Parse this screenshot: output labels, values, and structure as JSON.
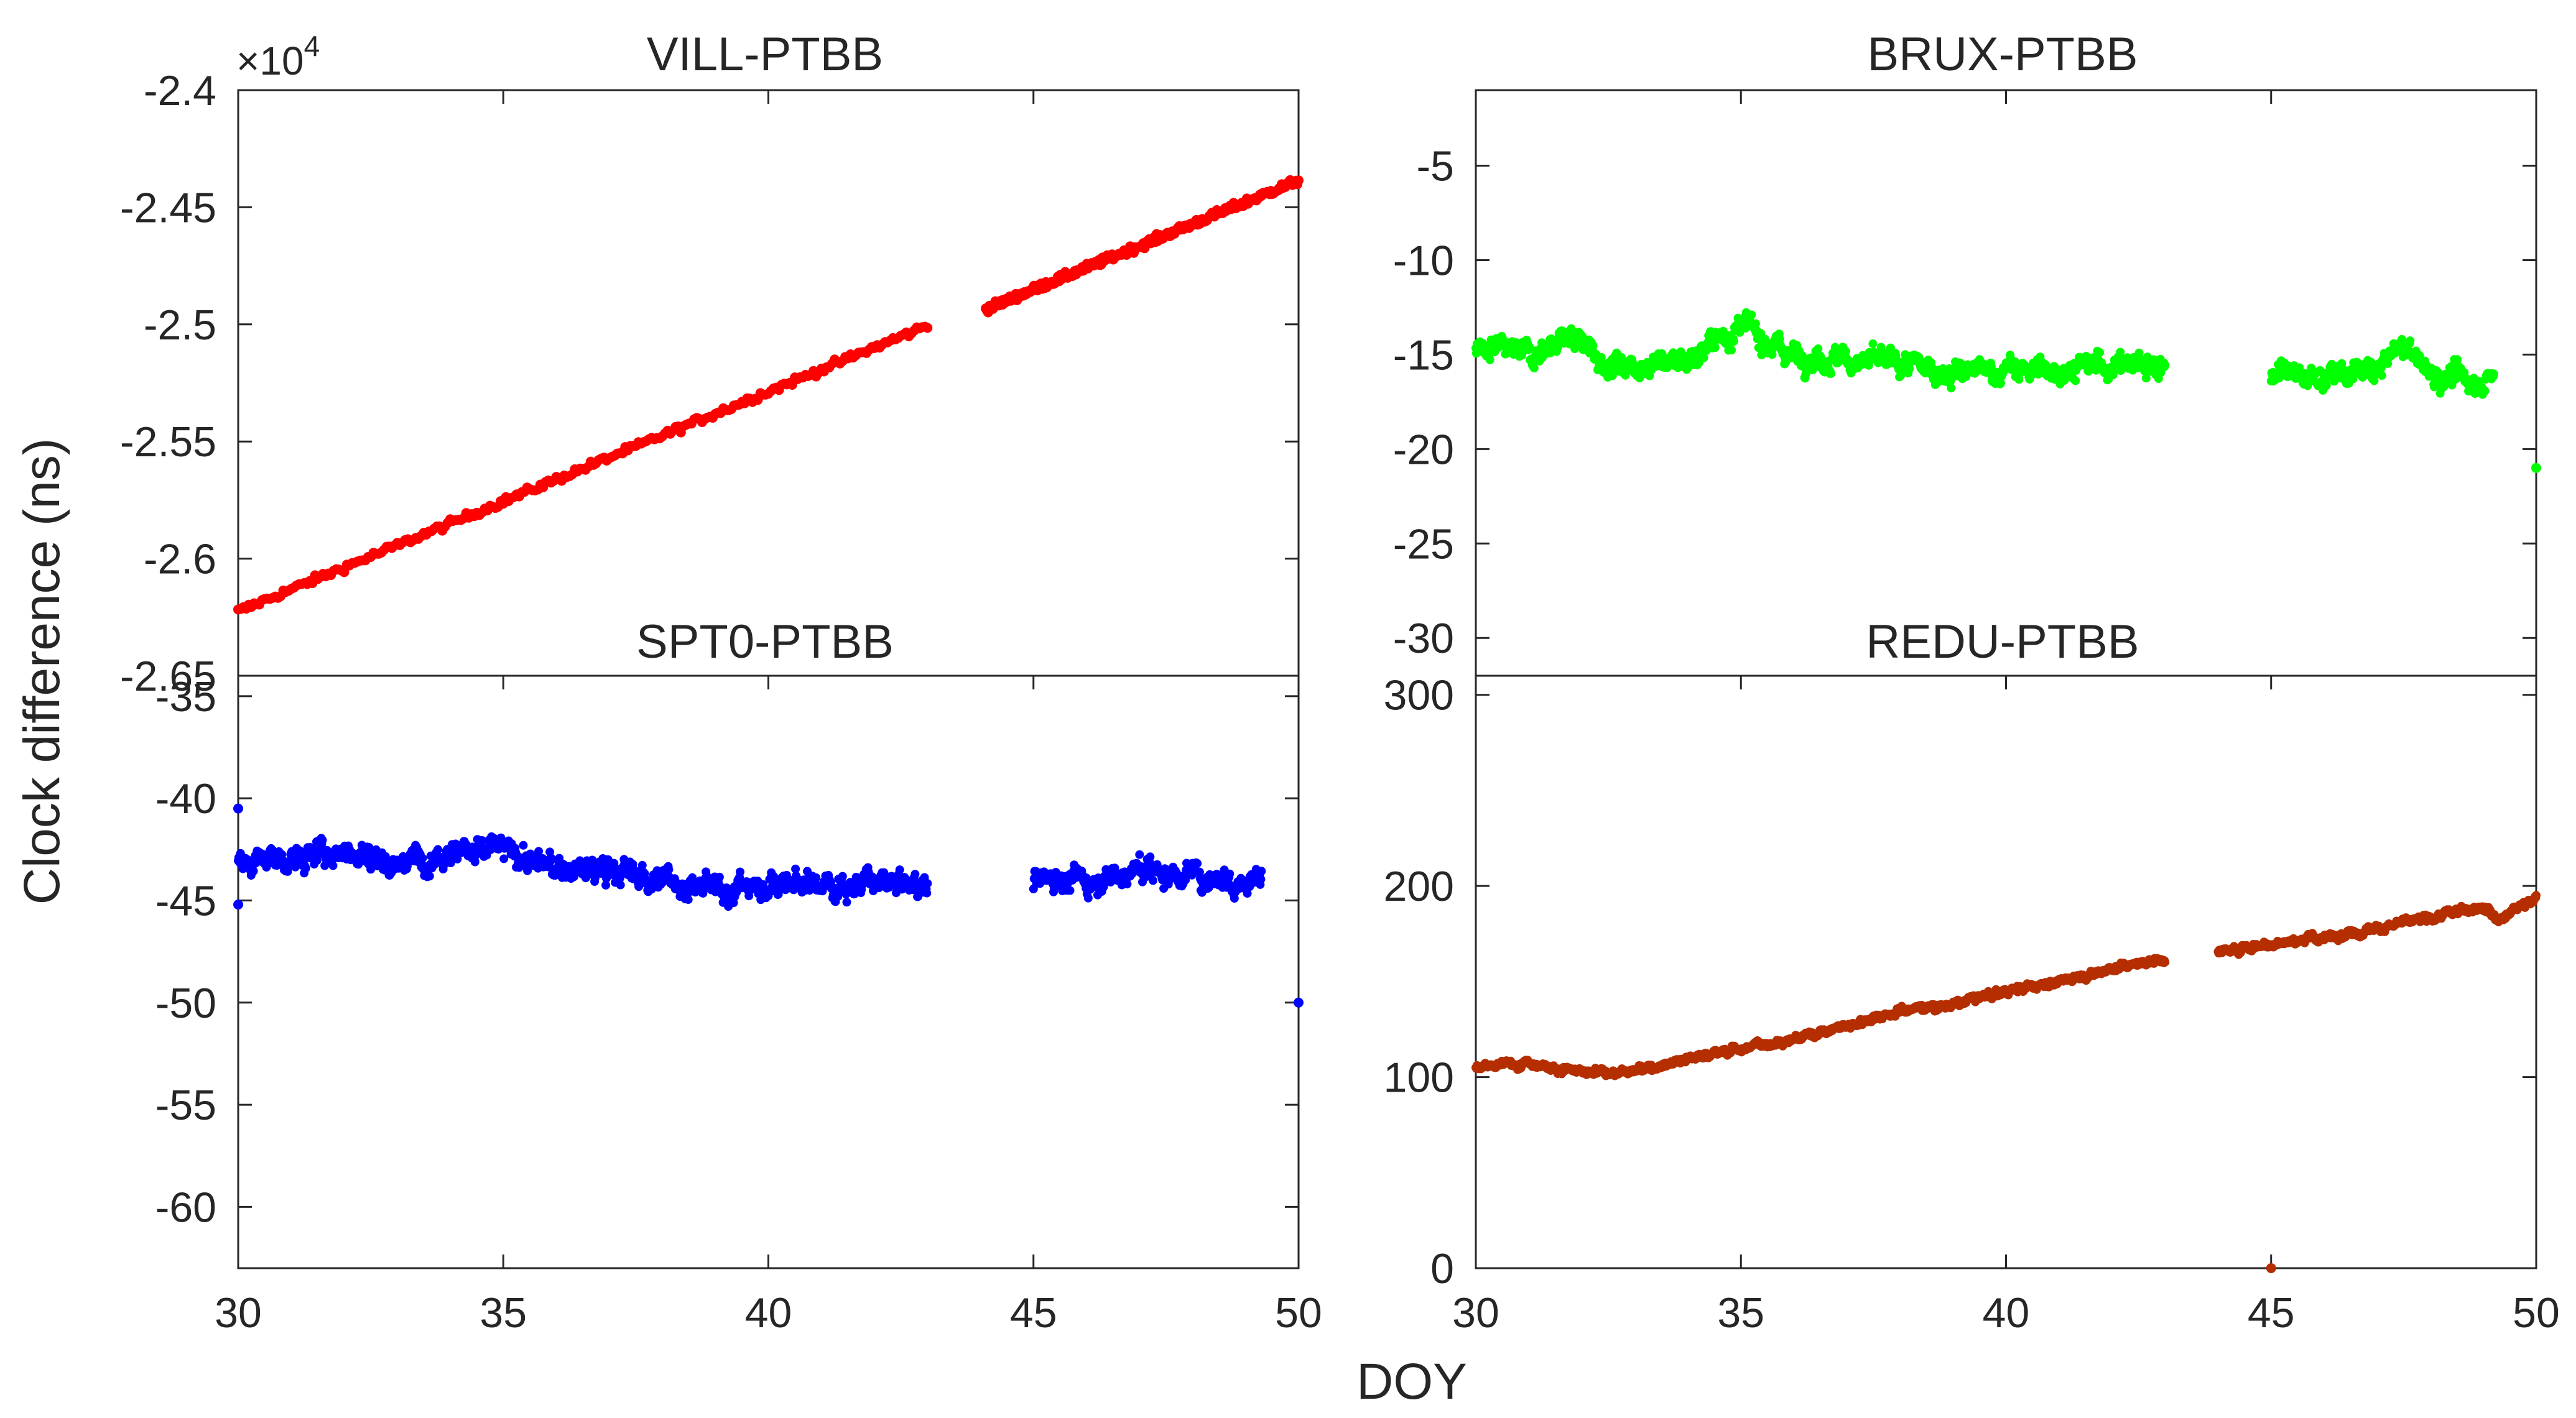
{
  "figure": {
    "ylabel": "Clock difference (ns)",
    "xlabel": "DOY"
  },
  "chart_data": [
    {
      "type": "scatter",
      "title": "VILL-PTBB",
      "exponent_label": "×10",
      "exponent_power": "4",
      "color": "#ff0000",
      "xlim": [
        30,
        50
      ],
      "ylim": [
        -2.65,
        -2.4
      ],
      "xticks": [],
      "yticks": [
        "-2.4",
        "-2.45",
        "-2.5",
        "-2.55",
        "-2.6",
        "-2.65"
      ],
      "ytick_values": [
        -2.4,
        -2.45,
        -2.5,
        -2.55,
        -2.6,
        -2.65
      ],
      "segments": [
        {
          "x": [
            30,
            43
          ],
          "y": [
            -2.6225,
            -2.5005
          ]
        },
        {
          "x": [
            44.1,
            50
          ],
          "y": [
            -2.4935,
            -2.4385
          ]
        }
      ],
      "noise": 0.0015,
      "outliers": []
    },
    {
      "type": "scatter",
      "title": "BRUX-PTBB",
      "color": "#00ff00",
      "xlim": [
        30,
        50
      ],
      "ylim": [
        -32,
        -1
      ],
      "xticks": [],
      "yticks": [
        "-5",
        "-10",
        "-15",
        "-20",
        "-25",
        "-30"
      ],
      "ytick_values": [
        -5,
        -10,
        -15,
        -20,
        -25,
        -30
      ],
      "profile": [
        [
          30,
          -14.8
        ],
        [
          31,
          -15
        ],
        [
          31.8,
          -14
        ],
        [
          32.5,
          -15.5
        ],
        [
          33,
          -15.5
        ],
        [
          34,
          -15.2
        ],
        [
          35,
          -13.5
        ],
        [
          36,
          -15
        ],
        [
          37,
          -15.3
        ],
        [
          38,
          -15.5
        ],
        [
          39,
          -16
        ],
        [
          40,
          -15.8
        ],
        [
          41,
          -15.8
        ],
        [
          42,
          -15.5
        ],
        [
          43,
          -15.5
        ]
      ],
      "profile2": [
        [
          45,
          -16
        ],
        [
          46,
          -16.2
        ],
        [
          47,
          -15.8
        ],
        [
          47.5,
          -14.5
        ],
        [
          48,
          -16
        ],
        [
          49,
          -16.5
        ],
        [
          49.2,
          -16.3
        ]
      ],
      "noise": 0.8,
      "outliers": [
        [
          50,
          -21
        ]
      ]
    },
    {
      "type": "scatter",
      "title": "SPT0-PTBB",
      "color": "#0000ff",
      "xlim": [
        30,
        50
      ],
      "ylim": [
        -63,
        -34
      ],
      "xticks": [
        "30",
        "35",
        "40",
        "45",
        "50"
      ],
      "xtick_values": [
        30,
        35,
        40,
        45,
        50
      ],
      "yticks": [
        "-35",
        "-40",
        "-45",
        "-50",
        "-55",
        "-60"
      ],
      "ytick_values": [
        -35,
        -40,
        -45,
        -50,
        -55,
        -60
      ],
      "profile": [
        [
          30,
          -43
        ],
        [
          31,
          -43
        ],
        [
          32,
          -42.5
        ],
        [
          33,
          -43.2
        ],
        [
          34,
          -42.5
        ],
        [
          35,
          -42.5
        ],
        [
          36,
          -43.5
        ],
        [
          37,
          -43.5
        ],
        [
          38,
          -44
        ],
        [
          39,
          -44.5
        ],
        [
          40,
          -44.2
        ],
        [
          41,
          -44.2
        ],
        [
          42,
          -44.2
        ],
        [
          43,
          -44.3
        ]
      ],
      "profile2": [
        [
          45,
          -43.8
        ],
        [
          46,
          -44
        ],
        [
          47,
          -43.5
        ],
        [
          48,
          -43.7
        ],
        [
          49,
          -44
        ],
        [
          49.3,
          -43.8
        ]
      ],
      "noise": 0.8,
      "outliers": [
        [
          50,
          -50
        ],
        [
          30,
          -45.2
        ],
        [
          30,
          -40.5
        ]
      ]
    },
    {
      "type": "scatter",
      "title": "REDU-PTBB",
      "color": "#b52e00",
      "xlim": [
        30,
        50
      ],
      "ylim": [
        0,
        310
      ],
      "xticks": [
        "30",
        "35",
        "40",
        "45",
        "50"
      ],
      "xtick_values": [
        30,
        35,
        40,
        45,
        50
      ],
      "yticks": [
        "0",
        "100",
        "200",
        "300"
      ],
      "ytick_values": [
        0,
        100,
        200,
        300
      ],
      "profile": [
        [
          30,
          105
        ],
        [
          31,
          108
        ],
        [
          32,
          102
        ],
        [
          33,
          103
        ],
        [
          34,
          110
        ],
        [
          35,
          115
        ],
        [
          36,
          120
        ],
        [
          37,
          127
        ],
        [
          38,
          135
        ],
        [
          39,
          138
        ],
        [
          40,
          145
        ],
        [
          41,
          150
        ],
        [
          42,
          157
        ],
        [
          43,
          162
        ]
      ],
      "profile2": [
        [
          44,
          165
        ],
        [
          45,
          170
        ],
        [
          46,
          173
        ],
        [
          47,
          178
        ],
        [
          48,
          183
        ],
        [
          49,
          190
        ],
        [
          49.3,
          182
        ],
        [
          50,
          195
        ]
      ],
      "noise": 2.5,
      "outliers": [
        [
          45,
          0
        ]
      ]
    }
  ]
}
